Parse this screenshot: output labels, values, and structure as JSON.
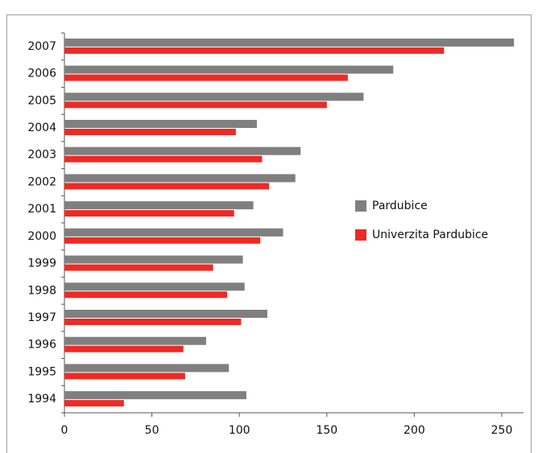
{
  "chart_data": {
    "type": "bar",
    "orientation": "horizontal",
    "categories": [
      "2007",
      "2006",
      "2005",
      "2004",
      "2003",
      "2002",
      "2001",
      "2000",
      "1999",
      "1998",
      "1997",
      "1996",
      "1995",
      "1994"
    ],
    "series": [
      {
        "name": "Pardubice",
        "color": "#7f7f7f",
        "values": [
          257,
          188,
          171,
          110,
          135,
          132,
          108,
          125,
          102,
          103,
          116,
          81,
          94,
          104
        ]
      },
      {
        "name": "Univerzita Pardubice",
        "color": "#ee2a24",
        "values": [
          217,
          162,
          150,
          98,
          113,
          117,
          97,
          112,
          85,
          93,
          101,
          68,
          69,
          34
        ]
      }
    ],
    "xlim": [
      0,
      262
    ],
    "xticks": [
      0,
      50,
      100,
      150,
      200,
      250
    ],
    "legend": "right"
  }
}
